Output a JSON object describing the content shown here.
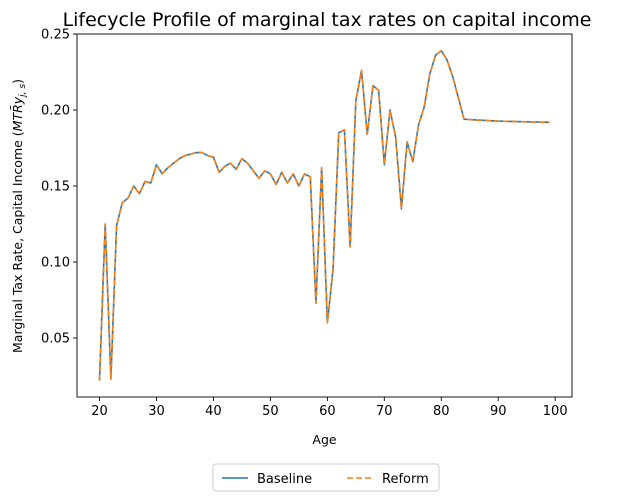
{
  "chart_data": {
    "type": "line",
    "title": "Lifecycle Profile of marginal tax rates on capital income",
    "xlabel": "Age",
    "ylabel_prefix": "Marginal Tax Rate, Capital Income (",
    "ylabel_math": "MTR̄y",
    "ylabel_sub": "j, s",
    "ylabel_suffix": ")",
    "xlim": [
      16.05,
      102.95
    ],
    "ylim": [
      0.0112,
      0.25
    ],
    "xticks": [
      20,
      30,
      40,
      50,
      60,
      70,
      80,
      90,
      100
    ],
    "yticks": [
      0.05,
      0.1,
      0.15,
      0.2,
      0.25
    ],
    "ytick_labels": [
      "0.05",
      "0.10",
      "0.15",
      "0.20",
      "0.25"
    ],
    "grid": false,
    "legend_position": "below-center",
    "x": [
      20,
      21,
      22,
      23,
      24,
      25,
      26,
      27,
      28,
      29,
      30,
      31,
      32,
      33,
      34,
      35,
      36,
      37,
      38,
      39,
      40,
      41,
      42,
      43,
      44,
      45,
      46,
      47,
      48,
      49,
      50,
      51,
      52,
      53,
      54,
      55,
      56,
      57,
      58,
      59,
      60,
      61,
      62,
      63,
      64,
      65,
      66,
      67,
      68,
      69,
      70,
      71,
      72,
      73,
      74,
      75,
      76,
      77,
      78,
      79,
      80,
      81,
      82,
      83,
      84,
      85,
      86,
      87,
      88,
      89,
      90,
      91,
      92,
      93,
      94,
      95,
      96,
      97,
      98,
      99
    ],
    "series": [
      {
        "name": "Baseline",
        "color": "#1f77b4",
        "dash": "solid",
        "values": [
          0.022,
          0.125,
          0.023,
          0.124,
          0.139,
          0.142,
          0.15,
          0.145,
          0.153,
          0.152,
          0.164,
          0.158,
          0.162,
          0.165,
          0.168,
          0.17,
          0.171,
          0.172,
          0.172,
          0.17,
          0.169,
          0.159,
          0.163,
          0.165,
          0.161,
          0.168,
          0.165,
          0.16,
          0.155,
          0.16,
          0.158,
          0.151,
          0.159,
          0.152,
          0.158,
          0.15,
          0.158,
          0.156,
          0.073,
          0.162,
          0.06,
          0.095,
          0.185,
          0.187,
          0.11,
          0.206,
          0.226,
          0.184,
          0.216,
          0.213,
          0.164,
          0.2,
          0.182,
          0.135,
          0.179,
          0.166,
          0.19,
          0.202,
          0.224,
          0.236,
          0.239,
          0.233,
          0.222,
          0.208,
          0.194,
          0.1937,
          0.1935,
          0.1933,
          0.1931,
          0.1929,
          0.1927,
          0.1926,
          0.1925,
          0.1924,
          0.1923,
          0.1922,
          0.1921,
          0.1921,
          0.192,
          0.192
        ]
      },
      {
        "name": "Reform",
        "color": "#ff7f0e",
        "dash": "dashed",
        "values": [
          0.022,
          0.125,
          0.023,
          0.124,
          0.139,
          0.142,
          0.15,
          0.145,
          0.153,
          0.152,
          0.164,
          0.158,
          0.162,
          0.165,
          0.168,
          0.17,
          0.171,
          0.172,
          0.172,
          0.17,
          0.169,
          0.159,
          0.163,
          0.165,
          0.161,
          0.168,
          0.165,
          0.16,
          0.155,
          0.16,
          0.158,
          0.151,
          0.159,
          0.152,
          0.158,
          0.15,
          0.158,
          0.156,
          0.073,
          0.162,
          0.06,
          0.095,
          0.185,
          0.187,
          0.11,
          0.206,
          0.226,
          0.184,
          0.216,
          0.213,
          0.164,
          0.2,
          0.182,
          0.135,
          0.179,
          0.166,
          0.19,
          0.202,
          0.224,
          0.236,
          0.239,
          0.233,
          0.222,
          0.208,
          0.194,
          0.1937,
          0.1935,
          0.1933,
          0.1931,
          0.1929,
          0.1927,
          0.1926,
          0.1925,
          0.1924,
          0.1923,
          0.1922,
          0.1921,
          0.1921,
          0.192,
          0.192
        ]
      }
    ]
  }
}
